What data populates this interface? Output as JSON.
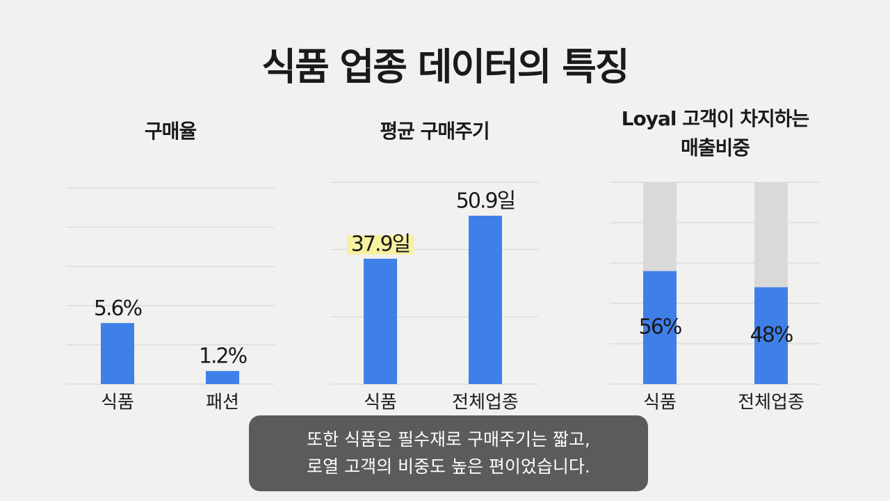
{
  "title": "식품 업종 데이터의 특징",
  "chart_data": [
    {
      "type": "bar",
      "title": [
        "구매율"
      ],
      "categories": [
        "식품",
        "패션"
      ],
      "values": [
        5.6,
        1.2
      ],
      "value_labels": [
        "5.6%",
        "1.2%"
      ],
      "color": "#3f7fe8",
      "ylim": [
        0,
        18
      ],
      "grid": true,
      "label_position": "above"
    },
    {
      "type": "bar",
      "title": [
        "평균 구매주기"
      ],
      "categories": [
        "식품",
        "전체업종"
      ],
      "values": [
        37.9,
        50.9
      ],
      "value_labels": [
        "37.9일",
        "50.9일"
      ],
      "color": "#3f7fe8",
      "ylim": [
        0,
        61
      ],
      "grid": true,
      "label_position": "above",
      "highlight": {
        "index": 0,
        "color": "#f8f1a0"
      }
    },
    {
      "type": "bar",
      "title": [
        "Loyal 고객이 차지하는",
        "매출비중"
      ],
      "categories": [
        "식품",
        "전체업종"
      ],
      "values": [
        56,
        48
      ],
      "value_labels": [
        "56%",
        "48%"
      ],
      "color": "#3f7fe8",
      "ylim": [
        0,
        100
      ],
      "grid": true,
      "label_position": "inside",
      "track_color": "#d9d9d9"
    }
  ],
  "caption": [
    "또한 식품은 필수재로 구매주기는 짧고,",
    "로열 고객의 비중도 높은 편이었습니다."
  ]
}
